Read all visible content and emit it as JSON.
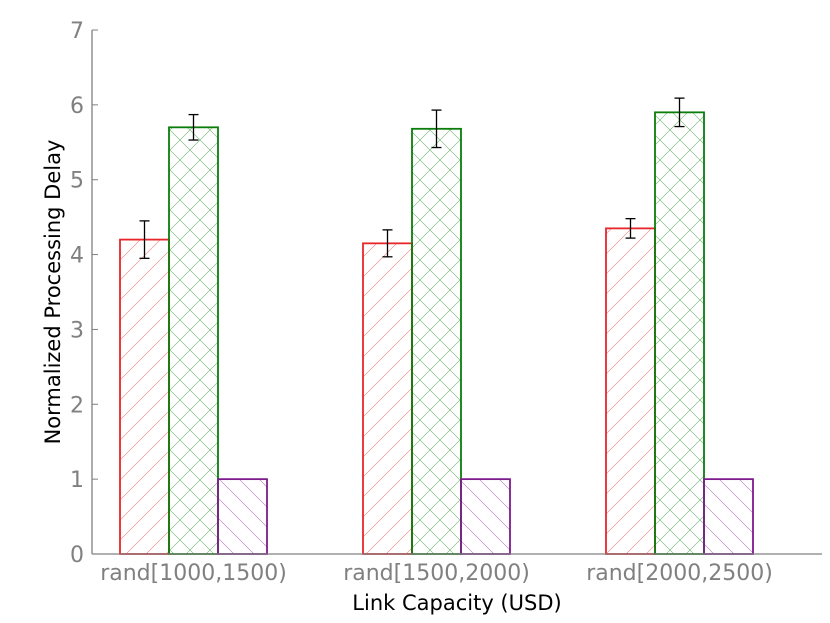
{
  "chart_data": {
    "type": "bar",
    "title": "",
    "xlabel": "Link Capacity (USD)",
    "ylabel": "Normalized Processing Delay",
    "ylim": [
      0,
      7
    ],
    "yticks": [
      "0",
      "1",
      "2",
      "3",
      "4",
      "5",
      "6",
      "7"
    ],
    "categories": [
      "rand[1000,1500)",
      "rand[1500,2000)",
      "rand[2000,2500)"
    ],
    "grid": false,
    "legend": "none",
    "series": [
      {
        "color": "#e8262a",
        "hatch": "diagonal",
        "values": [
          4.2,
          4.15,
          4.35
        ],
        "errors": [
          0.25,
          0.18,
          0.13
        ]
      },
      {
        "color": "#0a7d0a",
        "hatch": "crosshatch",
        "values": [
          5.7,
          5.68,
          5.9
        ],
        "errors": [
          0.17,
          0.25,
          0.19
        ]
      },
      {
        "color": "#7d1a8c",
        "hatch": "back-diagonal",
        "values": [
          1.0,
          1.0,
          1.0
        ],
        "errors": [
          0,
          0,
          0
        ]
      }
    ]
  }
}
